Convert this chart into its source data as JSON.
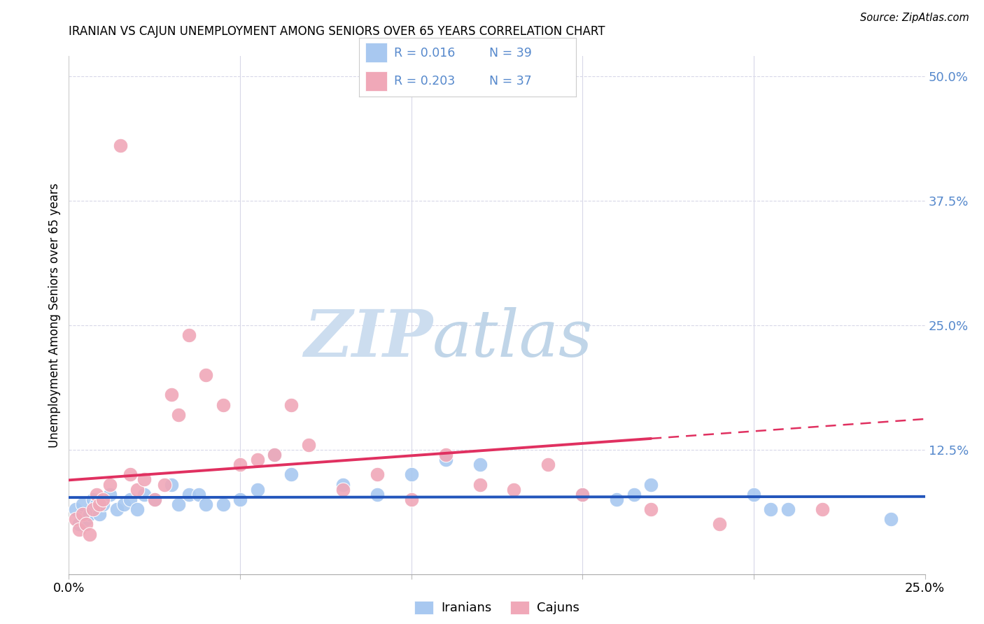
{
  "title": "IRANIAN VS CAJUN UNEMPLOYMENT AMONG SENIORS OVER 65 YEARS CORRELATION CHART",
  "source": "Source: ZipAtlas.com",
  "ylabel": "Unemployment Among Seniors over 65 years",
  "ytick_labels": [
    "50.0%",
    "37.5%",
    "25.0%",
    "12.5%"
  ],
  "ytick_values": [
    0.5,
    0.375,
    0.25,
    0.125
  ],
  "xlim": [
    0.0,
    0.25
  ],
  "ylim": [
    0.0,
    0.52
  ],
  "iranians_color": "#a8c8f0",
  "cajuns_color": "#f0a8b8",
  "iranians_line_color": "#2255bb",
  "cajuns_line_color": "#e03060",
  "right_tick_color": "#5588cc",
  "background_color": "#ffffff",
  "grid_color": "#d8d8e8",
  "iranians_x": [
    0.002,
    0.003,
    0.004,
    0.005,
    0.006,
    0.007,
    0.008,
    0.009,
    0.01,
    0.012,
    0.014,
    0.016,
    0.018,
    0.02,
    0.022,
    0.025,
    0.03,
    0.032,
    0.035,
    0.038,
    0.04,
    0.045,
    0.05,
    0.055,
    0.06,
    0.065,
    0.08,
    0.09,
    0.1,
    0.11,
    0.12,
    0.15,
    0.16,
    0.165,
    0.17,
    0.2,
    0.205,
    0.21,
    0.24
  ],
  "iranians_y": [
    0.065,
    0.05,
    0.07,
    0.055,
    0.06,
    0.075,
    0.07,
    0.06,
    0.07,
    0.08,
    0.065,
    0.07,
    0.075,
    0.065,
    0.08,
    0.075,
    0.09,
    0.07,
    0.08,
    0.08,
    0.07,
    0.07,
    0.075,
    0.085,
    0.12,
    0.1,
    0.09,
    0.08,
    0.1,
    0.115,
    0.11,
    0.08,
    0.075,
    0.08,
    0.09,
    0.08,
    0.065,
    0.065,
    0.055
  ],
  "cajuns_x": [
    0.002,
    0.003,
    0.004,
    0.005,
    0.006,
    0.007,
    0.008,
    0.009,
    0.01,
    0.012,
    0.015,
    0.018,
    0.02,
    0.022,
    0.025,
    0.028,
    0.03,
    0.032,
    0.035,
    0.04,
    0.045,
    0.05,
    0.055,
    0.06,
    0.065,
    0.07,
    0.08,
    0.09,
    0.1,
    0.11,
    0.12,
    0.13,
    0.14,
    0.15,
    0.17,
    0.19,
    0.22
  ],
  "cajuns_y": [
    0.055,
    0.045,
    0.06,
    0.05,
    0.04,
    0.065,
    0.08,
    0.07,
    0.075,
    0.09,
    0.43,
    0.1,
    0.085,
    0.095,
    0.075,
    0.09,
    0.18,
    0.16,
    0.24,
    0.2,
    0.17,
    0.11,
    0.115,
    0.12,
    0.17,
    0.13,
    0.085,
    0.1,
    0.075,
    0.12,
    0.09,
    0.085,
    0.11,
    0.08,
    0.065,
    0.05,
    0.065
  ]
}
